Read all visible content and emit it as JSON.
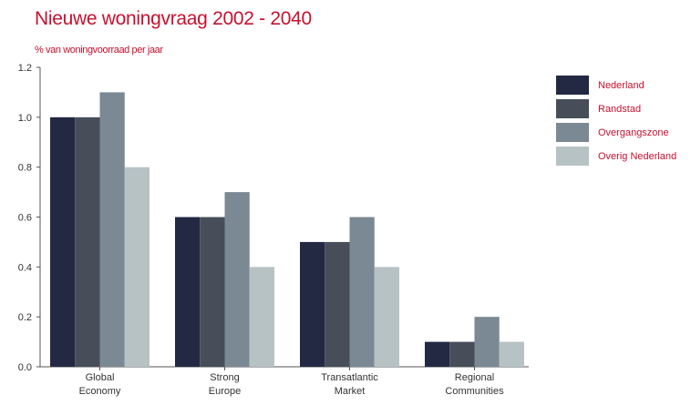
{
  "chart_data": {
    "type": "bar",
    "title": "Nieuwe woningvraag 2002 - 2040",
    "subtitle": "% van woningvoorraad per jaar",
    "xlabel": "",
    "ylabel": "",
    "ylim": [
      0,
      1.2
    ],
    "yticks": [
      "0.0",
      "0.2",
      "0.4",
      "0.6",
      "0.8",
      "1.0",
      "1.2"
    ],
    "categories": [
      [
        "Global",
        "Economy"
      ],
      [
        "Strong",
        "Europe"
      ],
      [
        "Transatlantic",
        "Market"
      ],
      [
        "Regional",
        "Communities"
      ]
    ],
    "series": [
      {
        "name": "Nederland",
        "color": "#232843",
        "values": [
          1.0,
          0.6,
          0.5,
          0.1
        ]
      },
      {
        "name": "Randstad",
        "color": "#474e5a",
        "values": [
          1.0,
          0.6,
          0.5,
          0.1
        ]
      },
      {
        "name": "Overgangszone",
        "color": "#7b8994",
        "values": [
          1.1,
          0.7,
          0.6,
          0.2
        ]
      },
      {
        "name": "Overig Nederland",
        "color": "#b7c2c5",
        "values": [
          0.8,
          0.4,
          0.4,
          0.1
        ]
      }
    ],
    "legend": "right",
    "grid": false
  }
}
